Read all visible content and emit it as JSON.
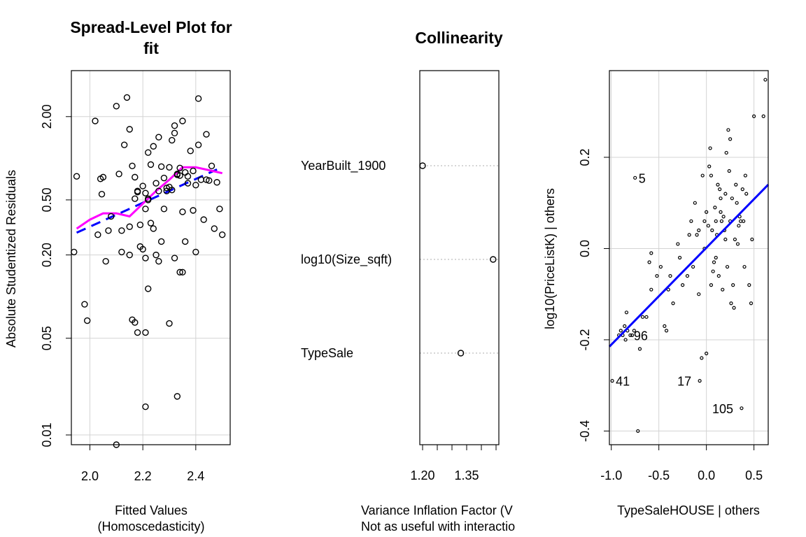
{
  "chart_data": [
    {
      "type": "scatter",
      "title_lines": [
        "Spread-Level Plot for",
        "fit"
      ],
      "xlabel_lines": [
        "Fitted Values",
        "(Homoscedasticity)"
      ],
      "ylabel": "Absolute Studentized Residuals",
      "scale": {
        "x": "linear",
        "y": "log"
      },
      "xlim": [
        1.93,
        2.53
      ],
      "ylim": [
        0.0085,
        4.3
      ],
      "xticks": [
        2.0,
        2.2,
        2.4
      ],
      "xtick_labels": [
        "2.0",
        "2.2",
        "2.4"
      ],
      "yticks": [
        0.01,
        0.05,
        0.2,
        0.5,
        2.0
      ],
      "ytick_labels": [
        "0.01",
        "0.05",
        "0.20",
        "0.50",
        "2.00"
      ],
      "grid": true,
      "points": [
        [
          1.94,
          0.21
        ],
        [
          1.95,
          0.74
        ],
        [
          1.98,
          0.088
        ],
        [
          1.99,
          0.067
        ],
        [
          2.02,
          1.86
        ],
        [
          2.03,
          0.28
        ],
        [
          2.04,
          0.71
        ],
        [
          2.045,
          0.55
        ],
        [
          2.05,
          0.73
        ],
        [
          2.06,
          0.18
        ],
        [
          2.07,
          0.3
        ],
        [
          2.08,
          0.38
        ],
        [
          2.1,
          2.38
        ],
        [
          2.11,
          0.77
        ],
        [
          2.12,
          0.3
        ],
        [
          2.13,
          1.25
        ],
        [
          2.14,
          2.75
        ],
        [
          2.15,
          1.62
        ],
        [
          2.15,
          0.32
        ],
        [
          2.16,
          0.88
        ],
        [
          2.17,
          0.73
        ],
        [
          2.17,
          0.51
        ],
        [
          2.18,
          0.57
        ],
        [
          2.19,
          0.23
        ],
        [
          2.19,
          0.33
        ],
        [
          2.2,
          0.63
        ],
        [
          2.21,
          0.56
        ],
        [
          2.22,
          1.1
        ],
        [
          2.22,
          0.51
        ],
        [
          2.23,
          0.34
        ],
        [
          2.24,
          0.31
        ],
        [
          2.25,
          0.66
        ],
        [
          2.26,
          0.58
        ],
        [
          2.27,
          0.87
        ],
        [
          2.28,
          0.43
        ],
        [
          2.29,
          0.61
        ],
        [
          2.3,
          0.86
        ],
        [
          2.31,
          1.35
        ],
        [
          2.32,
          1.72
        ],
        [
          2.33,
          0.76
        ],
        [
          2.34,
          0.85
        ],
        [
          2.35,
          0.41
        ],
        [
          2.36,
          0.79
        ],
        [
          2.37,
          0.66
        ],
        [
          2.38,
          1.13
        ],
        [
          2.39,
          0.81
        ],
        [
          2.4,
          0.64
        ],
        [
          2.41,
          1.25
        ],
        [
          2.42,
          0.7
        ],
        [
          2.43,
          0.36
        ],
        [
          2.44,
          1.49
        ],
        [
          2.45,
          0.69
        ],
        [
          2.46,
          0.88
        ],
        [
          2.47,
          0.31
        ],
        [
          2.48,
          0.67
        ],
        [
          2.49,
          0.43
        ],
        [
          2.5,
          0.28
        ],
        [
          2.12,
          0.21
        ],
        [
          2.15,
          0.2
        ],
        [
          2.18,
          0.58
        ],
        [
          2.21,
          0.43
        ],
        [
          2.23,
          0.9
        ],
        [
          2.26,
          1.42
        ],
        [
          2.28,
          0.72
        ],
        [
          2.3,
          0.62
        ],
        [
          2.32,
          1.52
        ],
        [
          2.34,
          0.75
        ],
        [
          2.35,
          1.86
        ],
        [
          2.37,
          0.74
        ],
        [
          2.2,
          0.22
        ],
        [
          2.21,
          0.19
        ],
        [
          2.22,
          0.5
        ],
        [
          2.25,
          0.2
        ],
        [
          2.29,
          0.58
        ],
        [
          2.31,
          0.59
        ],
        [
          2.33,
          0.77
        ],
        [
          2.36,
          0.25
        ],
        [
          2.39,
          0.42
        ],
        [
          2.16,
          0.068
        ],
        [
          2.17,
          0.065
        ],
        [
          2.18,
          0.055
        ],
        [
          2.21,
          0.055
        ],
        [
          2.22,
          0.114
        ],
        [
          2.24,
          1.22
        ],
        [
          2.26,
          0.18
        ],
        [
          2.3,
          0.064
        ],
        [
          2.32,
          0.19
        ],
        [
          2.34,
          0.15
        ],
        [
          2.35,
          0.15
        ],
        [
          2.4,
          0.21
        ],
        [
          2.41,
          2.7
        ],
        [
          2.44,
          0.7
        ],
        [
          2.33,
          0.019
        ],
        [
          2.21,
          0.016
        ],
        [
          2.1,
          0.0085
        ],
        [
          2.27,
          0.25
        ]
      ],
      "fit_line_dashed": {
        "x": [
          1.95,
          2.48
        ],
        "y": [
          0.29,
          0.83
        ]
      },
      "smooth_line": {
        "x": [
          1.95,
          2.0,
          2.05,
          2.1,
          2.15,
          2.2,
          2.25,
          2.3,
          2.35,
          2.4,
          2.45,
          2.5
        ],
        "y": [
          0.31,
          0.36,
          0.4,
          0.4,
          0.38,
          0.47,
          0.58,
          0.7,
          0.86,
          0.86,
          0.82,
          0.78
        ]
      },
      "colors": {
        "fit_line": "#0000ff",
        "smooth_line": "#ff00ff",
        "grid": "#d3d3d3"
      }
    },
    {
      "type": "dot",
      "title": "Collinearity",
      "xlabel_lines": [
        "Variance Inflation Factor (V",
        "Not as useful with interactio"
      ],
      "xlim": [
        1.2,
        1.45
      ],
      "xticks": [
        1.2,
        1.25,
        1.3,
        1.35,
        1.4,
        1.45
      ],
      "xtick_labels": [
        "1.20",
        "",
        "",
        "1.35",
        "",
        ""
      ],
      "categories": [
        "YearBuilt_1900",
        "log10(Size_sqft)",
        "TypeSale"
      ],
      "values": [
        1.2,
        1.44,
        1.33
      ],
      "colors": {
        "guide": "#bebebe"
      }
    },
    {
      "type": "scatter",
      "xlabel": "TypeSaleHOUSE | others",
      "ylabel": "log10(PriceListK)  | others",
      "xlim": [
        -1.02,
        0.65
      ],
      "ylim": [
        -0.43,
        0.39
      ],
      "xticks": [
        -1.0,
        -0.5,
        0.0,
        0.5
      ],
      "xtick_labels": [
        "-1.0",
        "-0.5",
        "0.0",
        "0.5"
      ],
      "yticks": [
        -0.4,
        -0.2,
        0.0,
        0.2
      ],
      "ytick_labels": [
        "-0.4",
        "-0.2",
        "0.0",
        "0.2"
      ],
      "grid": true,
      "points": [
        [
          -0.99,
          -0.29
        ],
        [
          -0.92,
          -0.19
        ],
        [
          -0.9,
          -0.18
        ],
        [
          -0.88,
          -0.19
        ],
        [
          -0.86,
          -0.17
        ],
        [
          -0.85,
          -0.2
        ],
        [
          -0.84,
          -0.14
        ],
        [
          -0.83,
          -0.18
        ],
        [
          -0.8,
          -0.19
        ],
        [
          -0.78,
          -0.19
        ],
        [
          -0.76,
          -0.18
        ],
        [
          -0.75,
          0.155
        ],
        [
          -0.72,
          -0.4
        ],
        [
          -0.7,
          -0.22
        ],
        [
          -0.67,
          -0.15
        ],
        [
          -0.63,
          -0.15
        ],
        [
          -0.6,
          -0.03
        ],
        [
          -0.58,
          -0.01
        ],
        [
          -0.58,
          -0.09
        ],
        [
          -0.52,
          -0.06
        ],
        [
          -0.48,
          -0.04
        ],
        [
          -0.44,
          -0.17
        ],
        [
          -0.42,
          -0.18
        ],
        [
          -0.4,
          -0.09
        ],
        [
          -0.38,
          -0.06
        ],
        [
          -0.35,
          -0.12
        ],
        [
          -0.3,
          0.01
        ],
        [
          -0.28,
          -0.02
        ],
        [
          -0.25,
          -0.08
        ],
        [
          -0.2,
          -0.06
        ],
        [
          -0.18,
          0.03
        ],
        [
          -0.16,
          0.06
        ],
        [
          -0.14,
          -0.04
        ],
        [
          -0.12,
          0.1
        ],
        [
          -0.1,
          0.03
        ],
        [
          -0.08,
          0.04
        ],
        [
          -0.07,
          -0.29
        ],
        [
          -0.05,
          -0.24
        ],
        [
          -0.04,
          0.16
        ],
        [
          -0.02,
          0.06
        ],
        [
          0.0,
          -0.23
        ],
        [
          0.0,
          0.08
        ],
        [
          0.02,
          0.05
        ],
        [
          0.03,
          0.18
        ],
        [
          0.04,
          0.22
        ],
        [
          0.05,
          0.16
        ],
        [
          0.06,
          0.04
        ],
        [
          0.07,
          -0.05
        ],
        [
          0.08,
          -0.03
        ],
        [
          0.09,
          0.09
        ],
        [
          0.1,
          0.06
        ],
        [
          0.11,
          0.03
        ],
        [
          0.12,
          0.14
        ],
        [
          0.13,
          -0.06
        ],
        [
          0.14,
          0.13
        ],
        [
          0.15,
          0.11
        ],
        [
          0.16,
          0.06
        ],
        [
          0.17,
          -0.09
        ],
        [
          0.18,
          0.07
        ],
        [
          0.19,
          0.04
        ],
        [
          0.2,
          0.02
        ],
        [
          0.21,
          0.21
        ],
        [
          0.22,
          -0.04
        ],
        [
          0.23,
          0.26
        ],
        [
          0.24,
          0.17
        ],
        [
          0.25,
          0.06
        ],
        [
          0.26,
          -0.12
        ],
        [
          0.27,
          0.11
        ],
        [
          0.28,
          -0.08
        ],
        [
          0.29,
          -0.13
        ],
        [
          0.3,
          0.02
        ],
        [
          0.31,
          0.14
        ],
        [
          0.32,
          0.1
        ],
        [
          0.33,
          0.01
        ],
        [
          0.34,
          0.05
        ],
        [
          0.35,
          0.07
        ],
        [
          0.36,
          0.06
        ],
        [
          0.37,
          -0.35
        ],
        [
          0.38,
          0.13
        ],
        [
          0.39,
          0.06
        ],
        [
          0.4,
          -0.04
        ],
        [
          0.41,
          0.16
        ],
        [
          0.42,
          0.12
        ],
        [
          0.45,
          -0.08
        ],
        [
          0.47,
          -0.12
        ],
        [
          0.48,
          0.02
        ],
        [
          0.5,
          0.29
        ],
        [
          0.6,
          0.29
        ],
        [
          0.62,
          0.37
        ],
        [
          0.05,
          -0.08
        ],
        [
          -0.02,
          0.0
        ],
        [
          -0.08,
          -0.1
        ],
        [
          0.15,
          0.08
        ],
        [
          0.2,
          0.12
        ],
        [
          0.25,
          0.24
        ],
        [
          0.1,
          -0.02
        ]
      ],
      "labeled_points": [
        {
          "label": "5",
          "x": -0.75,
          "y": 0.155
        },
        {
          "label": "96",
          "x": -0.8,
          "y": -0.19
        },
        {
          "label": "41",
          "x": -0.99,
          "y": -0.29
        },
        {
          "label": "17",
          "x": -0.07,
          "y": -0.29
        },
        {
          "label": "105",
          "x": 0.37,
          "y": -0.35
        }
      ],
      "fit_line": {
        "x": [
          -1.02,
          0.65
        ],
        "y": [
          -0.215,
          0.14
        ]
      },
      "colors": {
        "fit_line": "#0000ff",
        "grid": "#d3d3d3"
      }
    }
  ]
}
